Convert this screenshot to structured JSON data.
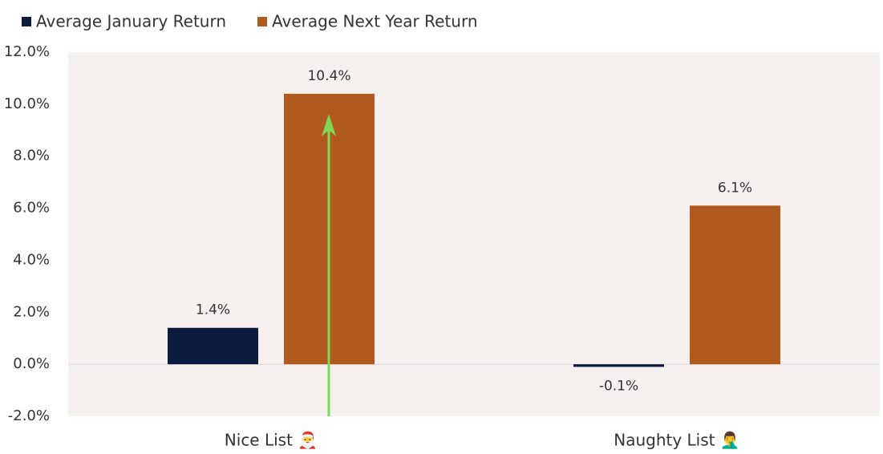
{
  "chart_data": {
    "type": "bar",
    "categories": [
      "Nice List 🎅",
      "Naughty List 🤦‍♂️"
    ],
    "series": [
      {
        "name": "Average January Return",
        "color": "#0d1b3e",
        "values": [
          1.4,
          -0.1
        ],
        "value_labels": [
          "1.4%",
          "-0.1%"
        ]
      },
      {
        "name": "Average Next Year Return",
        "color": "#b05a20",
        "values": [
          10.4,
          6.1
        ],
        "value_labels": [
          "10.4%",
          "6.1%"
        ]
      }
    ],
    "ylim": [
      -2,
      12
    ],
    "yticks": [
      {
        "value": -2,
        "label": "-2.0%"
      },
      {
        "value": 0,
        "label": "0.0%"
      },
      {
        "value": 2,
        "label": "2.0%"
      },
      {
        "value": 4,
        "label": "4.0%"
      },
      {
        "value": 6,
        "label": "6.0%"
      },
      {
        "value": 8,
        "label": "8.0%"
      },
      {
        "value": 10,
        "label": "10.0%"
      },
      {
        "value": 12,
        "label": "12.0%"
      }
    ],
    "legend": "top-left"
  }
}
